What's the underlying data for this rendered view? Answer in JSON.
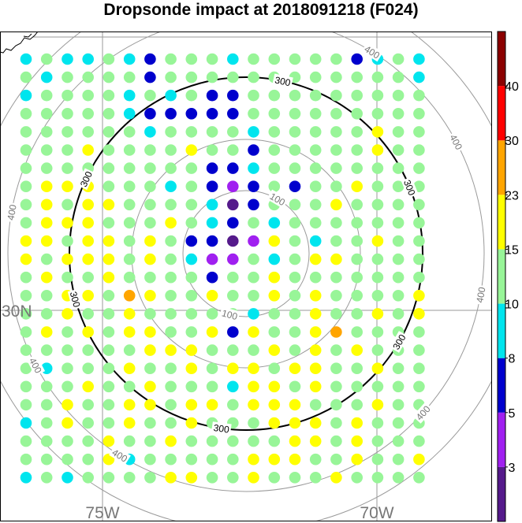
{
  "chart_data": {
    "type": "scatter",
    "title": "Dropsonde impact at 2018091218 (F024)",
    "x_axis": {
      "ticks": [
        "75W",
        "70W"
      ]
    },
    "y_axis": {
      "ticks": [
        "30N"
      ]
    },
    "range_rings": {
      "labels": [
        "100",
        "300",
        "400"
      ],
      "rings": [
        {
          "label": "100",
          "emphasis": false,
          "label_count": 2
        },
        {
          "label": "",
          "emphasis": false,
          "label_count": 0
        },
        {
          "label": "300",
          "emphasis": true,
          "label_count": 6
        },
        {
          "label": "400",
          "emphasis": false,
          "label_count": 8
        },
        {
          "label": "",
          "emphasis": false,
          "label_count": 0
        }
      ]
    },
    "colorbar": {
      "tick_labels": [
        "3",
        "5",
        "8",
        "10",
        "15",
        "23",
        "30",
        "40"
      ],
      "bins": [
        {
          "color": "#551a8b"
        },
        {
          "color": "#a020f0"
        },
        {
          "color": "#0000cd"
        },
        {
          "color": "#00e5ee"
        },
        {
          "color": "#98f598"
        },
        {
          "color": "#ffff00"
        },
        {
          "color": "#ffa500"
        },
        {
          "color": "#ff0000"
        },
        {
          "color": "#8b0000"
        }
      ]
    },
    "colors": {
      "dark_purple": "#551a8b",
      "purple": "#a020f0",
      "blue": "#0000cd",
      "cyan": "#00e5ee",
      "light_green": "#98f598",
      "yellow": "#ffff00",
      "orange": "#ffa500",
      "red": "#ff0000",
      "dark_red": "#8b0000"
    },
    "grid_points": {
      "legend": {
        "D": "dark_purple",
        "P": "purple",
        "B": "blue",
        "C": "cyan",
        "G": "light_green",
        "Y": "yellow",
        "O": "orange",
        ".": "none"
      },
      "rows": [
        "CGCCGCBGGGCGGGGGBCGC",
        "GCGGGGBGGGGGGGGGGGGC",
        "CGGGGCGCGBBGGGGGGGGG",
        "GGGGGCBBBBBGGGGGGGGG",
        "GGGGGGCGGGGCGGGGGYGG",
        "GGGYGGGGYGGBGGGGGYGG",
        "GGGGGGGGGBBCGGGGGGGG",
        "GYYYGGGCGBPBGBGGYGGG",
        "GYGYYGGGGCDBGGGYGGGG",
        "GYYYGGGYGCBGCGGGGGGG",
        "YYGYYGYGBBDPYGCGGYGG",
        "YGYYYGYGCPPGCGYYGGGG",
        "GYGGYGGGGBGGYGGGGGGG",
        "GGYYGOYGGYGGYGYGGGGY",
        "GGYGGYGGGGGCGGYGGYGY",
        "GYGYGYYGGYBYGGYOGGGG",
        "GGGGGGYYYGGGYGYGYGGG",
        "GCGGGYGGYGYYGYYGGYGG",
        "GGGYGGYGGGCYYGYGGGGG",
        "GGYGGYYGYYGYYYGGGYGG",
        "CGYGGYGGYGGGYYYGYGGG",
        "GGGGYGGYGGGGGYYGYGGG",
        "GGGGYCGGGGGYYYGGYGGY",
        "CGCGGGGYYGGYGGGYGGGG"
      ]
    },
    "background_colors": {
      "gridline": "#9a9a9a",
      "ring": "#9a9a9a",
      "ring_emphasis": "#000000",
      "land": "#ffffff",
      "coast": "#000000"
    }
  }
}
